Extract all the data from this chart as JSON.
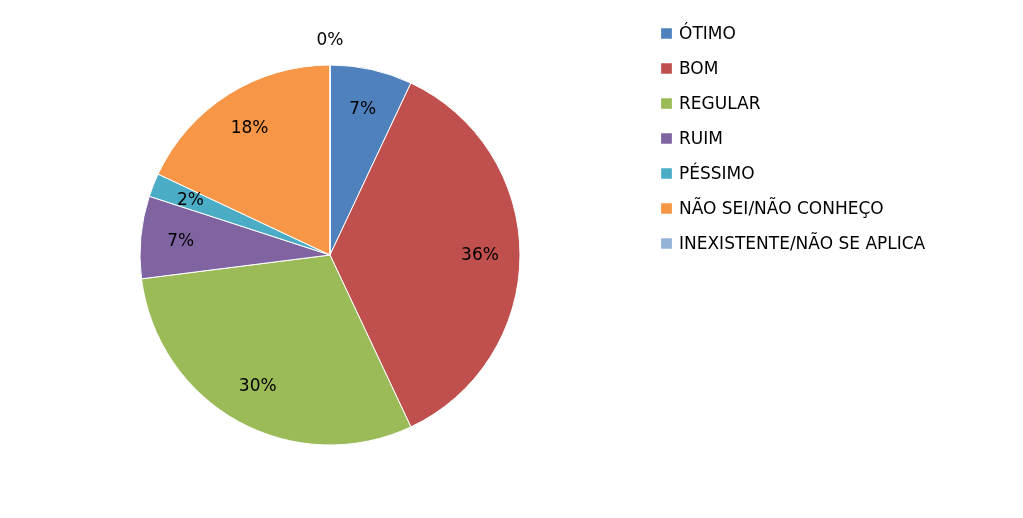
{
  "chart_data": {
    "type": "pie",
    "categories": [
      "ÓTIMO",
      "BOM",
      "REGULAR",
      "RUIM",
      "PÉSSIMO",
      "NÃO SEI/NÃO CONHEÇO",
      "INEXISTENTE/NÃO SE APLICA"
    ],
    "values": [
      7,
      36,
      30,
      7,
      2,
      18,
      0
    ],
    "colors": [
      "#4f81bd",
      "#c0504d",
      "#9bbb59",
      "#8064a2",
      "#4bacc6",
      "#f79646",
      "#95b3d7"
    ],
    "value_labels": [
      "7%",
      "36%",
      "30%",
      "7%",
      "2%",
      "18%",
      "0%"
    ],
    "legend": "right"
  }
}
